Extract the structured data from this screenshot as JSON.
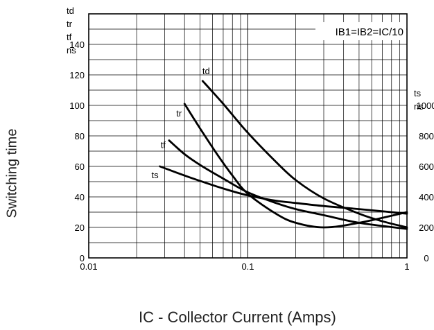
{
  "chart_data": {
    "type": "line",
    "x_scale": "log",
    "xlim": [
      0.01,
      1
    ],
    "ylim_left": [
      0,
      160
    ],
    "ylim_right": [
      0,
      1600
    ],
    "grid": true,
    "xlabel": "IC - Collector Current (Amps)",
    "ylabel": "Switching time",
    "left_axis_units": [
      "td",
      "tr",
      "tf",
      "ns"
    ],
    "right_axis_units": [
      "ts",
      "ns"
    ],
    "annotation": "IB1=IB2=IC/10",
    "x_tick_labels": [
      "0.01",
      "0.1",
      "1"
    ],
    "y_tick_labels_left": [
      "0",
      "20",
      "40",
      "60",
      "80",
      "100",
      "120",
      "140"
    ],
    "y_tick_labels_right": [
      "0",
      "200",
      "400",
      "600",
      "800",
      "1000"
    ],
    "series": [
      {
        "name": "td",
        "axis": "left",
        "x": [
          0.052,
          0.07,
          0.1,
          0.15,
          0.2,
          0.3,
          0.5,
          0.7,
          1.0
        ],
        "y": [
          116,
          101,
          82,
          63,
          51,
          39,
          29,
          24,
          20
        ]
      },
      {
        "name": "tr",
        "axis": "left",
        "x": [
          0.04,
          0.05,
          0.065,
          0.08,
          0.1,
          0.15,
          0.2,
          0.3,
          0.5,
          1.0
        ],
        "y": [
          101,
          85,
          67,
          54,
          42,
          29,
          23,
          20,
          23,
          30
        ]
      },
      {
        "name": "tf",
        "axis": "left",
        "x": [
          0.032,
          0.04,
          0.05,
          0.07,
          0.1,
          0.15,
          0.2,
          0.3,
          0.5,
          1.0
        ],
        "y": [
          77,
          68,
          61,
          52,
          43,
          36,
          32,
          28,
          23,
          19
        ]
      },
      {
        "name": "ts",
        "axis": "right",
        "x": [
          0.028,
          0.04,
          0.05,
          0.07,
          0.1,
          0.15,
          0.2,
          0.3,
          0.5,
          1.0
        ],
        "y": [
          600,
          540,
          505,
          455,
          410,
          375,
          360,
          340,
          320,
          290
        ]
      }
    ]
  }
}
